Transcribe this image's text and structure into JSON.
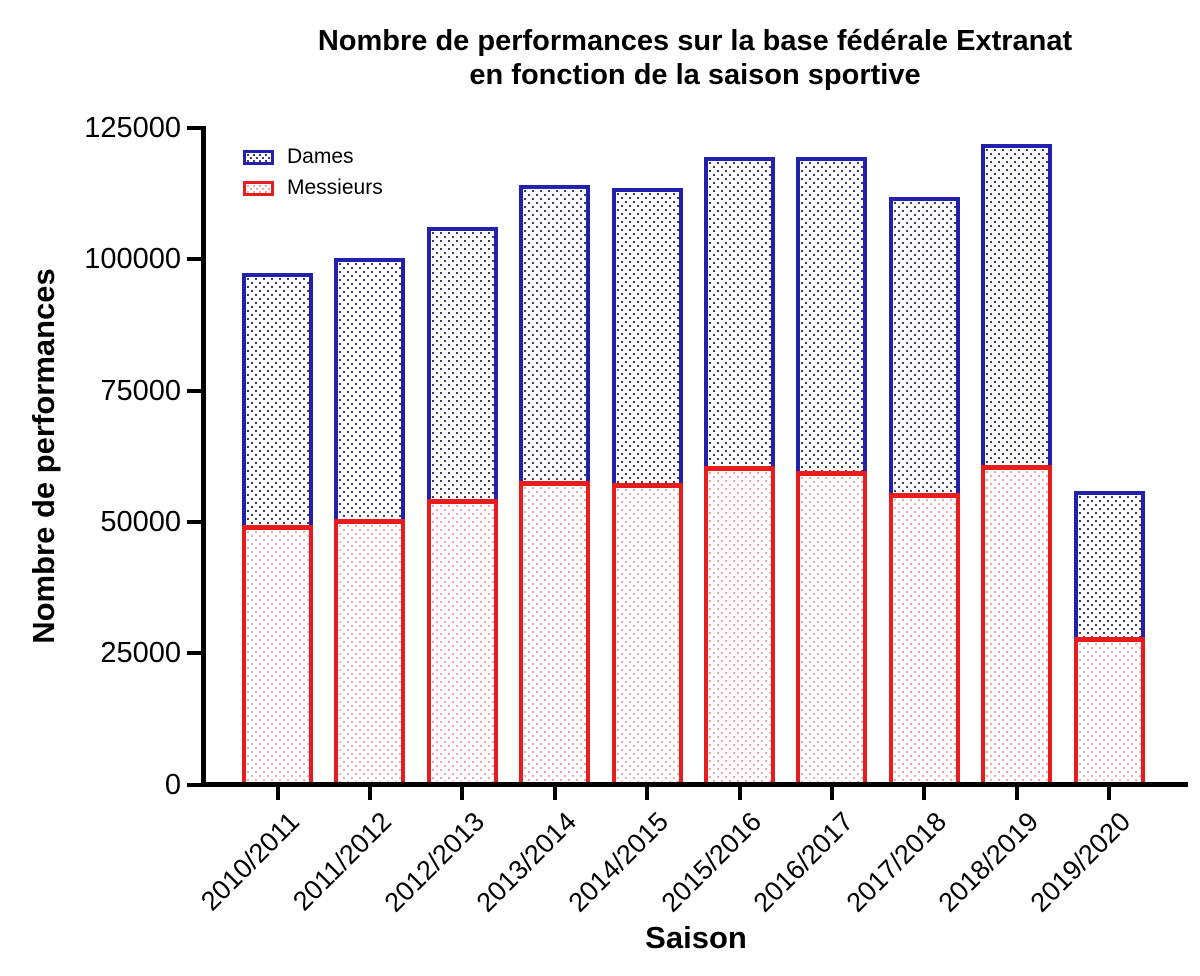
{
  "title": {
    "line1": "Nombre de performances sur la base fédérale Extranat",
    "line2": "en fonction de la saison sportive"
  },
  "chart_data": {
    "type": "bar",
    "stacked": true,
    "pattern": "dotted",
    "title": "Nombre de performances sur la base fédérale Extranat en fonction de la saison sportive",
    "xlabel": "Saison",
    "ylabel": "Nombre de performances",
    "ylim": [
      0,
      125000
    ],
    "yticks": [
      0,
      25000,
      50000,
      75000,
      100000,
      125000
    ],
    "categories": [
      "2010/2011",
      "2011/2012",
      "2012/2013",
      "2013/2014",
      "2014/2015",
      "2015/2016",
      "2016/2017",
      "2017/2018",
      "2018/2019",
      "2019/2020"
    ],
    "series": [
      {
        "name": "Dames",
        "stack_position": "top",
        "border_color": "#2121AE",
        "dot_color": "#3C3C78",
        "values": [
          47900,
          49800,
          51800,
          56400,
          56200,
          58800,
          59700,
          56300,
          61200,
          27800
        ]
      },
      {
        "name": "Messieurs",
        "stack_position": "bottom",
        "border_color": "#E81C1C",
        "dot_color": "#F2A8A8",
        "values": [
          49900,
          51000,
          54800,
          58300,
          57900,
          61100,
          60200,
          56000,
          61300,
          28600
        ]
      }
    ],
    "totals": [
      97800,
      100800,
      106600,
      114700,
      114100,
      119900,
      119900,
      112300,
      122500,
      56400
    ],
    "legend_position": "top-left-inside",
    "grid": false,
    "axis_color": "#000000",
    "background_color": "#FFFFFF"
  }
}
